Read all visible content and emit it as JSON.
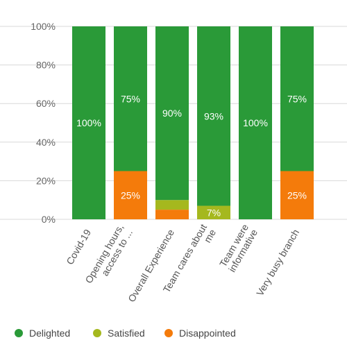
{
  "chart_data": {
    "type": "bar",
    "stacked": true,
    "categories": [
      [
        "Covid-19"
      ],
      [
        "Opening hours,",
        "access to ..."
      ],
      [
        "Overall Experience"
      ],
      [
        "Team cares about",
        "me"
      ],
      [
        "Team were",
        "informative"
      ],
      [
        "Very busy branch"
      ]
    ],
    "series": [
      {
        "name": "Disappointed",
        "values": [
          0,
          25,
          5,
          0,
          0,
          25
        ],
        "color": "#f47b0b"
      },
      {
        "name": "Satisfied",
        "values": [
          0,
          0,
          5,
          7,
          0,
          0
        ],
        "color": "#a5b81e"
      },
      {
        "name": "Delighted",
        "values": [
          100,
          75,
          90,
          93,
          100,
          75
        ],
        "color": "#2a9a38"
      }
    ],
    "data_labels": [
      {
        "category": 0,
        "series": "Delighted",
        "text": "100%"
      },
      {
        "category": 1,
        "series": "Delighted",
        "text": "75%"
      },
      {
        "category": 1,
        "series": "Disappointed",
        "text": "25%"
      },
      {
        "category": 2,
        "series": "Delighted",
        "text": "90%"
      },
      {
        "category": 3,
        "series": "Delighted",
        "text": "93%"
      },
      {
        "category": 3,
        "series": "Satisfied",
        "text": "7%"
      },
      {
        "category": 4,
        "series": "Delighted",
        "text": "100%"
      },
      {
        "category": 5,
        "series": "Delighted",
        "text": "75%"
      },
      {
        "category": 5,
        "series": "Disappointed",
        "text": "25%"
      }
    ],
    "yticks": [
      "0%",
      "20%",
      "40%",
      "60%",
      "80%",
      "100%"
    ],
    "ylim": [
      0,
      100
    ],
    "grid": true,
    "legend": {
      "placement": "bottom-left",
      "items": [
        {
          "name": "Delighted",
          "color": "#2a9a38"
        },
        {
          "name": "Satisfied",
          "color": "#a5b81e"
        },
        {
          "name": "Disappointed",
          "color": "#f47b0b"
        }
      ]
    }
  }
}
